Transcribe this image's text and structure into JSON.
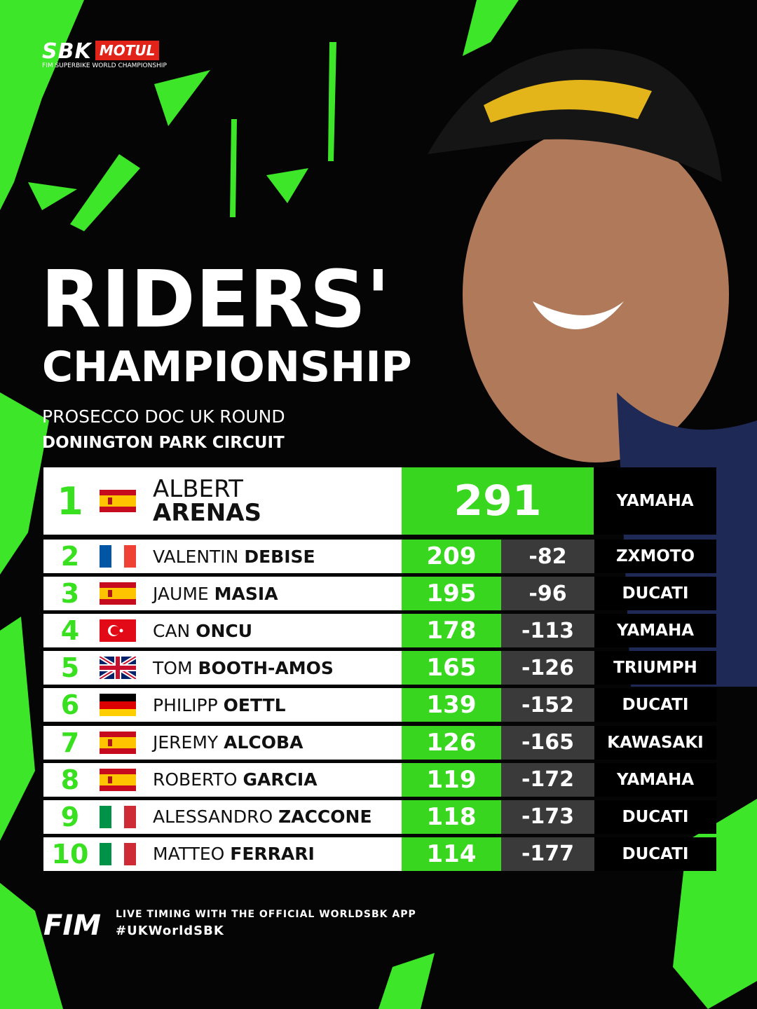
{
  "logo": {
    "brand": "SBK",
    "sponsor": "MOTUL",
    "tagline": "FIM SUPERBIKE WORLD CHAMPIONSHIP"
  },
  "header": {
    "title_line1": "RIDERS'",
    "title_line2": "CHAMPIONSHIP",
    "round": "PROSECCO DOC UK ROUND",
    "circuit": "DONINGTON PARK CIRCUIT"
  },
  "table": {
    "rows": [
      {
        "position": 1,
        "first_name": "ALBERT",
        "last_name": "ARENAS",
        "points": 291,
        "team": "YAMAHA"
      },
      {
        "position": 2,
        "first_name": "VALENTIN",
        "last_name": "DEBISE",
        "points": 209,
        "gap": -82,
        "team": "ZXMOTO"
      },
      {
        "position": 3,
        "first_name": "JAUME",
        "last_name": "MASIA",
        "points": 195,
        "gap": -96,
        "team": "DUCATI"
      },
      {
        "position": 4,
        "first_name": "CAN",
        "last_name": "ONCU",
        "points": 178,
        "gap": -113,
        "team": "YAMAHA"
      },
      {
        "position": 5,
        "first_name": "TOM",
        "last_name": "BOOTH-AMOS",
        "points": 165,
        "gap": -126,
        "team": "TRIUMPH"
      },
      {
        "position": 6,
        "first_name": "PHILIPP",
        "last_name": "OETTL",
        "points": 139,
        "gap": -152,
        "team": "DUCATI"
      },
      {
        "position": 7,
        "first_name": "JEREMY",
        "last_name": "ALCOBA",
        "points": 126,
        "gap": -165,
        "team": "KAWASAKI"
      },
      {
        "position": 8,
        "first_name": "ROBERTO",
        "last_name": "GARCIA",
        "points": 119,
        "gap": -172,
        "team": "YAMAHA"
      },
      {
        "position": 9,
        "first_name": "ALESSANDRO",
        "last_name": "ZACCONE",
        "points": 118,
        "gap": -173,
        "team": "DUCATI"
      },
      {
        "position": 10,
        "first_name": "MATTEO",
        "last_name": "FERRARI",
        "points": 114,
        "gap": -177,
        "team": "DUCATI"
      }
    ]
  },
  "footer": {
    "fim": "FIM",
    "app_text": "LIVE TIMING WITH THE OFFICIAL WORLDSBK APP",
    "hashtag": "#UKWorldSBK"
  }
}
